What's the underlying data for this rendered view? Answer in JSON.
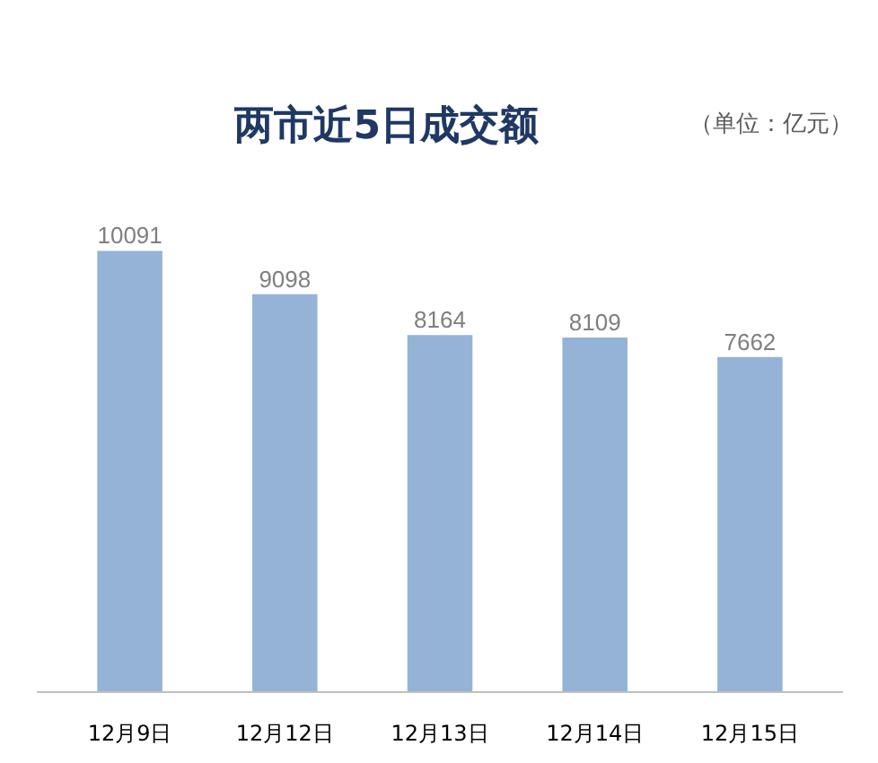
{
  "chart_data": {
    "type": "bar",
    "title": "两市近5日成交额",
    "annotations": [
      "（单位：亿元）"
    ],
    "categories": [
      "12月9日",
      "12月12日",
      "12月13日",
      "12月14日",
      "12月15日"
    ],
    "values": [
      10091,
      9098,
      8164,
      8109,
      7662
    ],
    "color": "#95b3d7",
    "data_labels": true,
    "grid": false
  }
}
